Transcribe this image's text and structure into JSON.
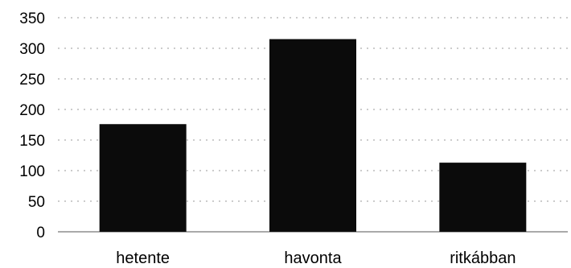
{
  "chart_data": {
    "type": "bar",
    "title": "",
    "xlabel": "",
    "ylabel": "",
    "categories": [
      "hetente",
      "havonta",
      "ritkábban"
    ],
    "values": [
      176,
      315,
      113
    ],
    "ylim": [
      0,
      350
    ],
    "yticks": [
      "0",
      "50",
      "100",
      "150",
      "200",
      "250",
      "300",
      "350"
    ],
    "grid": true,
    "legend": "none",
    "colors": {
      "bar": "#0b0b0b",
      "grid": "#9a9a9a",
      "text": "#000000"
    }
  }
}
